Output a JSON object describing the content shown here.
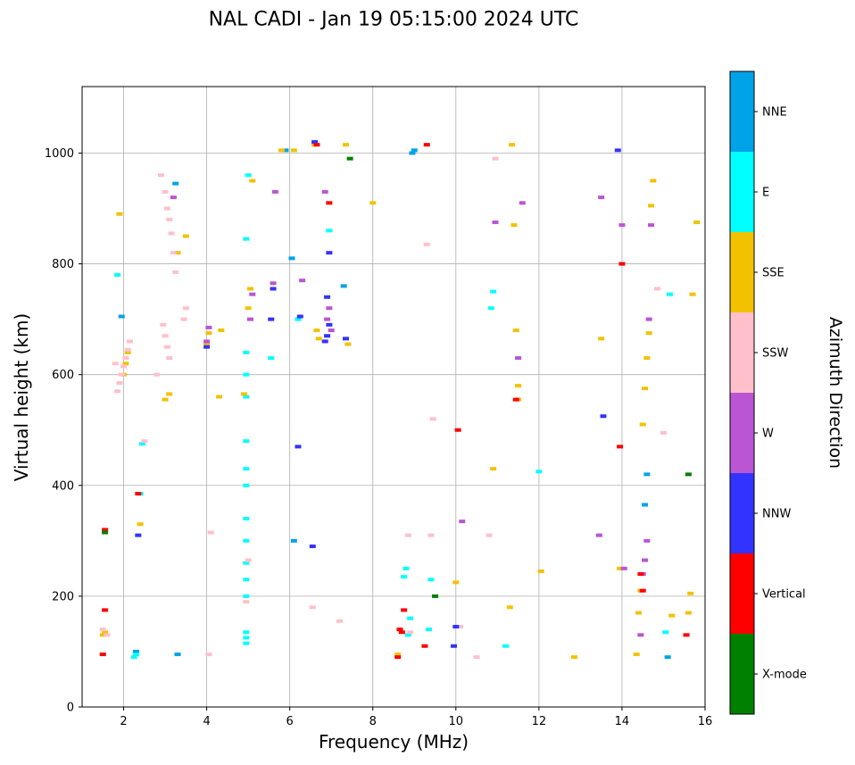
{
  "title": "NAL CADI - Jan 19 05:15:00 2024 UTC",
  "chart_data": {
    "type": "scatter",
    "title": "NAL CADI - Jan 19 05:15:00 2024 UTC",
    "xlabel": "Frequency (MHz)",
    "ylabel": "Virtual height (km)",
    "xlim": [
      1,
      16
    ],
    "ylim": [
      0,
      1120
    ],
    "xticks": [
      2,
      4,
      6,
      8,
      10,
      12,
      14,
      16
    ],
    "yticks": [
      0,
      200,
      400,
      600,
      800,
      1000
    ],
    "grid": true,
    "marker": {
      "width": 7,
      "height": 4
    },
    "colorbar": {
      "label": "Azimuth Direction",
      "position": "right",
      "categories": [
        {
          "label": "NNE",
          "color": "#00a2e8"
        },
        {
          "label": "E",
          "color": "#00ffff"
        },
        {
          "label": "SSE",
          "color": "#f2c200"
        },
        {
          "label": "SSW",
          "color": "#ffc0cb"
        },
        {
          "label": "W",
          "color": "#ba55d3"
        },
        {
          "label": "NNW",
          "color": "#3333ff"
        },
        {
          "label": "Vertical",
          "color": "#ff0000"
        },
        {
          "label": "X-mode",
          "color": "#008000"
        }
      ]
    },
    "series": [
      {
        "name": "NNE",
        "points": [
          [
            1.95,
            705
          ],
          [
            2.3,
            100
          ],
          [
            3.25,
            945
          ],
          [
            3.3,
            95
          ],
          [
            5.9,
            1005
          ],
          [
            6.05,
            810
          ],
          [
            6.1,
            300
          ],
          [
            7.3,
            760
          ],
          [
            8.95,
            1000
          ],
          [
            9.0,
            1005
          ],
          [
            14.55,
            365
          ],
          [
            14.6,
            420
          ],
          [
            15.1,
            90
          ]
        ]
      },
      {
        "name": "E",
        "points": [
          [
            1.5,
            95
          ],
          [
            1.85,
            780
          ],
          [
            2.25,
            90
          ],
          [
            2.3,
            95
          ],
          [
            2.4,
            385
          ],
          [
            2.45,
            475
          ],
          [
            4.95,
            115
          ],
          [
            4.95,
            125
          ],
          [
            4.95,
            135
          ],
          [
            4.95,
            200
          ],
          [
            4.95,
            230
          ],
          [
            4.95,
            260
          ],
          [
            4.95,
            300
          ],
          [
            4.95,
            340
          ],
          [
            4.95,
            400
          ],
          [
            4.95,
            430
          ],
          [
            4.95,
            480
          ],
          [
            4.95,
            560
          ],
          [
            4.95,
            600
          ],
          [
            4.95,
            640
          ],
          [
            4.95,
            845
          ],
          [
            5.0,
            960
          ],
          [
            5.55,
            630
          ],
          [
            6.2,
            700
          ],
          [
            6.95,
            860
          ],
          [
            8.75,
            235
          ],
          [
            8.8,
            250
          ],
          [
            8.85,
            130
          ],
          [
            8.9,
            160
          ],
          [
            9.35,
            140
          ],
          [
            9.4,
            230
          ],
          [
            10.85,
            720
          ],
          [
            10.9,
            750
          ],
          [
            11.2,
            110
          ],
          [
            12.0,
            425
          ],
          [
            15.05,
            135
          ],
          [
            15.15,
            745
          ]
        ]
      },
      {
        "name": "SSE",
        "points": [
          [
            1.5,
            130
          ],
          [
            1.55,
            135
          ],
          [
            1.9,
            890
          ],
          [
            2.0,
            600
          ],
          [
            2.05,
            620
          ],
          [
            2.1,
            640
          ],
          [
            2.4,
            330
          ],
          [
            3.0,
            555
          ],
          [
            3.1,
            565
          ],
          [
            3.3,
            820
          ],
          [
            3.5,
            850
          ],
          [
            4.0,
            655
          ],
          [
            4.05,
            675
          ],
          [
            4.3,
            560
          ],
          [
            4.35,
            680
          ],
          [
            4.9,
            565
          ],
          [
            5.0,
            720
          ],
          [
            5.05,
            755
          ],
          [
            5.1,
            950
          ],
          [
            5.8,
            1005
          ],
          [
            6.1,
            1005
          ],
          [
            6.6,
            1015
          ],
          [
            6.65,
            680
          ],
          [
            6.7,
            665
          ],
          [
            7.35,
            1015
          ],
          [
            7.4,
            655
          ],
          [
            8.0,
            910
          ],
          [
            8.6,
            95
          ],
          [
            10.0,
            225
          ],
          [
            10.9,
            430
          ],
          [
            11.3,
            180
          ],
          [
            11.35,
            1015
          ],
          [
            11.4,
            870
          ],
          [
            11.45,
            680
          ],
          [
            11.5,
            580
          ],
          [
            11.5,
            555
          ],
          [
            12.05,
            245
          ],
          [
            12.85,
            90
          ],
          [
            13.5,
            665
          ],
          [
            13.95,
            250
          ],
          [
            14.35,
            95
          ],
          [
            14.4,
            170
          ],
          [
            14.45,
            210
          ],
          [
            14.5,
            510
          ],
          [
            14.55,
            575
          ],
          [
            14.6,
            630
          ],
          [
            14.65,
            675
          ],
          [
            14.7,
            905
          ],
          [
            14.75,
            950
          ],
          [
            15.2,
            165
          ],
          [
            15.6,
            170
          ],
          [
            15.65,
            205
          ],
          [
            15.7,
            745
          ],
          [
            15.8,
            875
          ]
        ]
      },
      {
        "name": "SSW",
        "points": [
          [
            1.5,
            140
          ],
          [
            1.6,
            130
          ],
          [
            1.8,
            620
          ],
          [
            1.85,
            570
          ],
          [
            1.9,
            585
          ],
          [
            1.95,
            600
          ],
          [
            2.0,
            615
          ],
          [
            2.05,
            630
          ],
          [
            2.1,
            645
          ],
          [
            2.15,
            660
          ],
          [
            2.5,
            480
          ],
          [
            2.8,
            600
          ],
          [
            2.9,
            960
          ],
          [
            3.0,
            930
          ],
          [
            3.05,
            900
          ],
          [
            3.1,
            880
          ],
          [
            3.15,
            855
          ],
          [
            3.2,
            820
          ],
          [
            3.25,
            785
          ],
          [
            2.95,
            690
          ],
          [
            3.0,
            670
          ],
          [
            3.05,
            650
          ],
          [
            3.1,
            630
          ],
          [
            3.45,
            700
          ],
          [
            3.5,
            720
          ],
          [
            4.05,
            95
          ],
          [
            4.1,
            315
          ],
          [
            4.95,
            190
          ],
          [
            5.0,
            265
          ],
          [
            6.55,
            180
          ],
          [
            7.2,
            155
          ],
          [
            8.85,
            310
          ],
          [
            8.9,
            135
          ],
          [
            9.3,
            835
          ],
          [
            9.4,
            310
          ],
          [
            9.45,
            520
          ],
          [
            10.1,
            145
          ],
          [
            10.5,
            90
          ],
          [
            10.8,
            310
          ],
          [
            10.95,
            990
          ],
          [
            14.85,
            755
          ],
          [
            15.0,
            495
          ]
        ]
      },
      {
        "name": "W",
        "points": [
          [
            3.2,
            920
          ],
          [
            4.0,
            660
          ],
          [
            4.05,
            685
          ],
          [
            5.05,
            700
          ],
          [
            5.1,
            745
          ],
          [
            5.6,
            765
          ],
          [
            5.65,
            930
          ],
          [
            6.3,
            770
          ],
          [
            6.85,
            930
          ],
          [
            6.9,
            700
          ],
          [
            6.95,
            720
          ],
          [
            7.0,
            680
          ],
          [
            10.15,
            335
          ],
          [
            10.95,
            875
          ],
          [
            11.5,
            630
          ],
          [
            11.6,
            910
          ],
          [
            13.45,
            310
          ],
          [
            13.5,
            920
          ],
          [
            14.0,
            870
          ],
          [
            14.05,
            250
          ],
          [
            14.45,
            130
          ],
          [
            14.5,
            240
          ],
          [
            14.55,
            265
          ],
          [
            14.6,
            300
          ],
          [
            14.65,
            700
          ],
          [
            14.7,
            870
          ]
        ]
      },
      {
        "name": "NNW",
        "points": [
          [
            2.35,
            310
          ],
          [
            4.0,
            650
          ],
          [
            5.55,
            700
          ],
          [
            5.6,
            755
          ],
          [
            6.2,
            470
          ],
          [
            6.25,
            705
          ],
          [
            6.55,
            290
          ],
          [
            6.6,
            1020
          ],
          [
            6.85,
            660
          ],
          [
            6.9,
            670
          ],
          [
            6.9,
            740
          ],
          [
            6.95,
            690
          ],
          [
            6.95,
            820
          ],
          [
            7.35,
            665
          ],
          [
            9.95,
            110
          ],
          [
            10.0,
            145
          ],
          [
            13.55,
            525
          ],
          [
            13.9,
            1005
          ]
        ]
      },
      {
        "name": "Vertical",
        "points": [
          [
            1.5,
            95
          ],
          [
            1.55,
            175
          ],
          [
            1.55,
            320
          ],
          [
            2.35,
            385
          ],
          [
            6.65,
            1015
          ],
          [
            6.95,
            910
          ],
          [
            8.6,
            90
          ],
          [
            8.65,
            140
          ],
          [
            8.7,
            135
          ],
          [
            8.75,
            175
          ],
          [
            9.25,
            110
          ],
          [
            9.3,
            1015
          ],
          [
            10.05,
            500
          ],
          [
            11.45,
            555
          ],
          [
            13.95,
            470
          ],
          [
            14.0,
            800
          ],
          [
            14.45,
            240
          ],
          [
            14.5,
            210
          ],
          [
            15.55,
            130
          ]
        ]
      },
      {
        "name": "X-mode",
        "points": [
          [
            1.55,
            315
          ],
          [
            7.45,
            990
          ],
          [
            9.5,
            200
          ],
          [
            15.6,
            420
          ]
        ]
      }
    ]
  }
}
